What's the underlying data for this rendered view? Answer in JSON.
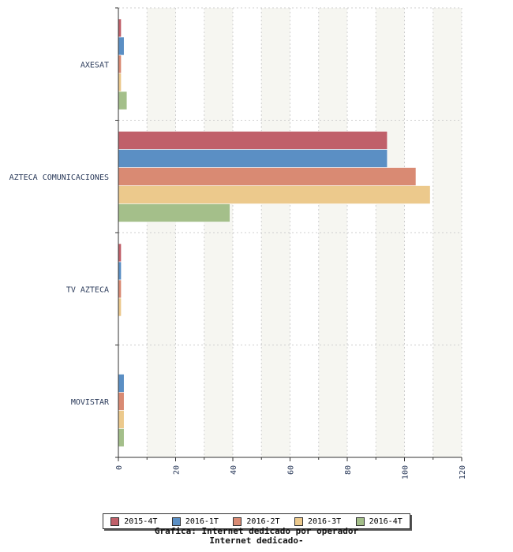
{
  "chart_data": {
    "type": "bar",
    "orientation": "horizontal",
    "categories": [
      "AXESAT",
      "AZTECA COMUNICACIONES",
      "TV AZTECA",
      "MOVISTAR"
    ],
    "series": [
      {
        "name": "2015-4T",
        "color": "#c0606a",
        "values": [
          1,
          94,
          1,
          0
        ]
      },
      {
        "name": "2016-1T",
        "color": "#5b8fc4",
        "values": [
          2,
          94,
          1,
          2
        ]
      },
      {
        "name": "2016-2T",
        "color": "#d98a73",
        "values": [
          1,
          104,
          1,
          2
        ]
      },
      {
        "name": "2016-3T",
        "color": "#ecc98c",
        "values": [
          1,
          109,
          1,
          2
        ]
      },
      {
        "name": "2016-4T",
        "color": "#a4bf8a",
        "values": [
          3,
          39,
          0,
          2
        ]
      }
    ],
    "xlim": [
      0,
      120
    ],
    "xticks": [
      0,
      20,
      40,
      60,
      80,
      100,
      120
    ],
    "grid": true,
    "legend_position": "bottom",
    "caption_lines": [
      "Grafica: Internet dedicado por operador",
      "Internet dedicado-"
    ]
  }
}
